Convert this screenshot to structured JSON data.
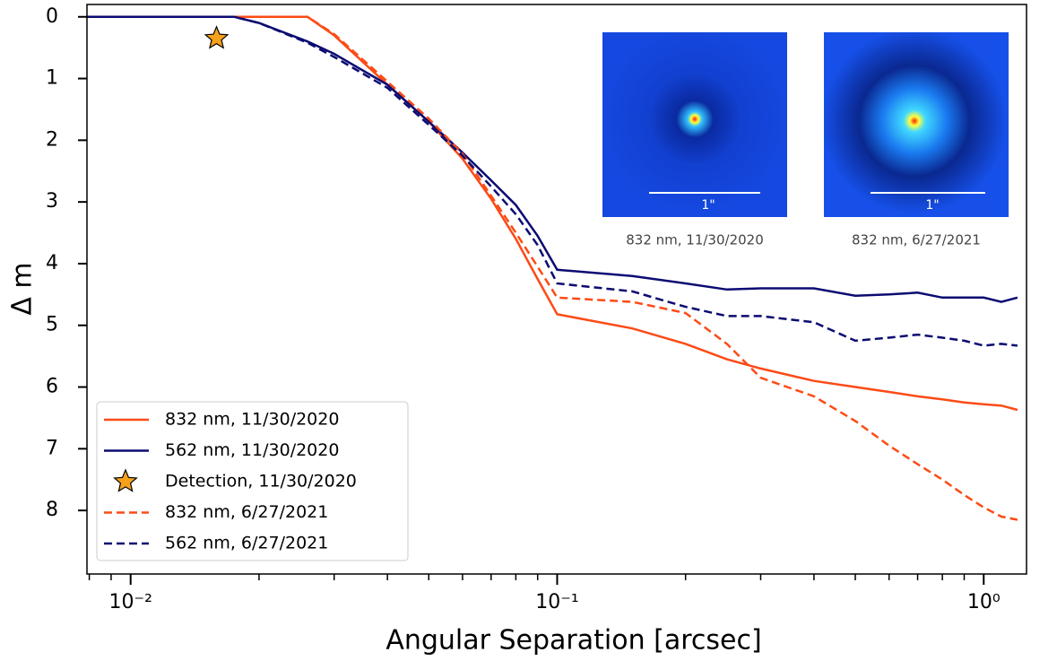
{
  "chart_data": {
    "type": "line",
    "xlabel": "Angular Separation [arcsec]",
    "ylabel": "Δ m",
    "xscale": "log",
    "xlim": [
      0.0079,
      1.26
    ],
    "xticks": [
      {
        "value": 0.01,
        "label": "10⁻²"
      },
      {
        "value": 0.1,
        "label": "10⁻¹"
      },
      {
        "value": 1,
        "label": "10⁰"
      }
    ],
    "xminorticks": [
      0.008,
      0.009,
      0.02,
      0.03,
      0.04,
      0.05,
      0.06,
      0.07,
      0.08,
      0.09,
      0.2,
      0.3,
      0.4,
      0.5,
      0.6,
      0.7,
      0.8,
      0.9
    ],
    "ylim": [
      -0.2,
      9.03
    ],
    "y_inverted": true,
    "yticks": [
      0,
      1,
      2,
      3,
      4,
      5,
      6,
      7,
      8
    ],
    "legend": "lower left",
    "x": [
      0.0079,
      0.0175,
      0.02,
      0.026,
      0.03,
      0.04,
      0.05,
      0.06,
      0.07,
      0.08,
      0.09,
      0.1,
      0.15,
      0.2,
      0.25,
      0.3,
      0.4,
      0.5,
      0.6,
      0.7,
      0.8,
      0.9,
      1.0,
      1.1,
      1.2
    ],
    "series": [
      {
        "name": "832 nm, 11/30/2020",
        "color": "#fc4b16",
        "dash": false,
        "values": [
          0,
          0,
          0,
          0,
          0.3,
          1.1,
          1.7,
          2.3,
          2.95,
          3.6,
          4.25,
          4.82,
          5.05,
          5.3,
          5.55,
          5.7,
          5.9,
          6.0,
          6.08,
          6.15,
          6.2,
          6.25,
          6.28,
          6.3,
          6.37
        ]
      },
      {
        "name": "562 nm, 11/30/2020",
        "color": "#0b0b72",
        "dash": false,
        "values": [
          0,
          0,
          0.1,
          0.4,
          0.6,
          1.1,
          1.7,
          2.2,
          2.65,
          3.05,
          3.55,
          4.1,
          4.2,
          4.32,
          4.42,
          4.4,
          4.4,
          4.52,
          4.5,
          4.47,
          4.55,
          4.55,
          4.55,
          4.62,
          4.55
        ]
      },
      {
        "name": "Detection, 11/30/2020",
        "color": "#f5a11c",
        "marker": "star",
        "x": [
          0.0159
        ],
        "values": [
          0.35
        ]
      },
      {
        "name": "832 nm, 6/27/2021",
        "color": "#fc4b16",
        "dash": true,
        "values": [
          0,
          0,
          0,
          0,
          0.28,
          1.05,
          1.65,
          2.22,
          2.9,
          3.5,
          4.05,
          4.55,
          4.62,
          4.8,
          5.3,
          5.85,
          6.15,
          6.55,
          6.95,
          7.25,
          7.5,
          7.75,
          7.95,
          8.1,
          8.15
        ]
      },
      {
        "name": "562 nm, 6/27/2021",
        "color": "#0b0b72",
        "dash": true,
        "values": [
          0,
          0,
          0.1,
          0.42,
          0.65,
          1.15,
          1.75,
          2.25,
          2.75,
          3.2,
          3.7,
          4.32,
          4.45,
          4.7,
          4.85,
          4.85,
          4.95,
          5.25,
          5.2,
          5.15,
          5.2,
          5.25,
          5.33,
          5.3,
          5.33
        ]
      }
    ],
    "insets": [
      {
        "caption": "832 nm, 11/30/2020",
        "scale_label": "1\""
      },
      {
        "caption": "832 nm, 6/27/2021",
        "scale_label": "1\""
      }
    ]
  }
}
